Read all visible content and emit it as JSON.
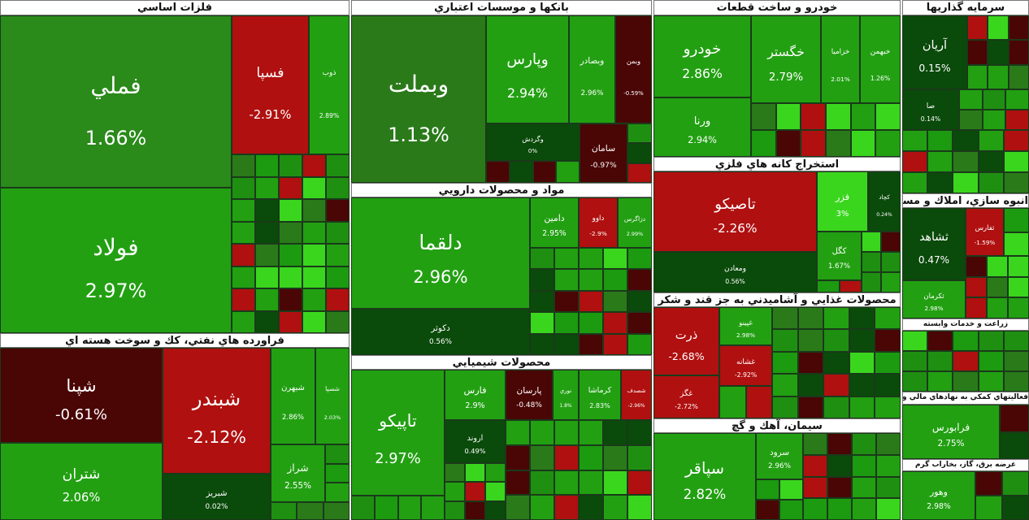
{
  "sectors": [
    {
      "title": "فلزات اساسي",
      "tiles": [
        {
          "name": "فملي",
          "change": "1.66%",
          "color": "#2a8a1a"
        },
        {
          "name": "فولاد",
          "change": "2.97%",
          "color": "#22a012"
        },
        {
          "name": "فسپا",
          "change": "-2.91%",
          "color": "#b01010"
        },
        {
          "name": "ذوب",
          "change": "2.89%",
          "color": "#22a012"
        }
      ]
    },
    {
      "title": "فراورده هاي نفتي، كك و سوخت هسته اي",
      "tiles": [
        {
          "name": "شپنا",
          "change": "-0.61%",
          "color": "#4a0505"
        },
        {
          "name": "شبندر",
          "change": "-2.12%",
          "color": "#b01010"
        },
        {
          "name": "شتران",
          "change": "2.06%",
          "color": "#22a012"
        },
        {
          "name": "شبريز",
          "change": "0.02%",
          "color": "#0a4a0a"
        },
        {
          "name": "شبهرن",
          "change": "2.86%",
          "color": "#22a012"
        },
        {
          "name": "شسپا",
          "change": "2.03%",
          "color": "#22a012"
        },
        {
          "name": "شراز",
          "change": "2.55%",
          "color": "#22a012"
        }
      ]
    },
    {
      "title": "بانكها و موسسات اعتباري",
      "tiles": [
        {
          "name": "وبملت",
          "change": "1.13%",
          "color": "#2a7a1a"
        },
        {
          "name": "وپارس",
          "change": "2.94%",
          "color": "#22a012"
        },
        {
          "name": "وبصادر",
          "change": "2.96%",
          "color": "#22a012"
        },
        {
          "name": "وبمن",
          "change": "-0.59%",
          "color": "#4a0505"
        },
        {
          "name": "وگردش",
          "change": "0%",
          "color": "#0a4a0a"
        },
        {
          "name": "سامان",
          "change": "-0.97%",
          "color": "#4a0505"
        }
      ]
    },
    {
      "title": "مواد و محصولات دارويي",
      "tiles": [
        {
          "name": "دلقما",
          "change": "2.96%",
          "color": "#22a012"
        },
        {
          "name": "دكوثر",
          "change": "0.56%",
          "color": "#0a4a0a"
        },
        {
          "name": "دامين",
          "change": "2.95%",
          "color": "#22a012"
        },
        {
          "name": "داوو",
          "change": "-2.9%",
          "color": "#b01010"
        },
        {
          "name": "دزاگرس",
          "change": "2.99%",
          "color": "#22a012"
        }
      ]
    },
    {
      "title": "محصولات شيميايي",
      "tiles": [
        {
          "name": "تاپيكو",
          "change": "2.97%",
          "color": "#22a012"
        },
        {
          "name": "فارس",
          "change": "2.9%",
          "color": "#22a012"
        },
        {
          "name": "پارسان",
          "change": "-0.48%",
          "color": "#4a0505"
        },
        {
          "name": "نوري",
          "change": "1.8%",
          "color": "#22a012"
        },
        {
          "name": "كرماشا",
          "change": "2.83%",
          "color": "#22a012"
        },
        {
          "name": "شصدف",
          "change": "-2.96%",
          "color": "#b01010"
        },
        {
          "name": "اروند",
          "change": "0.49%",
          "color": "#0a4a0a"
        }
      ]
    },
    {
      "title": "خودرو و ساخت قطعات",
      "tiles": [
        {
          "name": "خودرو",
          "change": "2.86%",
          "color": "#22a012"
        },
        {
          "name": "ورنا",
          "change": "2.94%",
          "color": "#22a012"
        },
        {
          "name": "خگستر",
          "change": "2.79%",
          "color": "#22a012"
        },
        {
          "name": "خزاميا",
          "change": "2.01%",
          "color": "#22a012"
        },
        {
          "name": "خبهمن",
          "change": "1.26%",
          "color": "#22a012"
        }
      ]
    },
    {
      "title": "استخراج كانه هاي فلزي",
      "tiles": [
        {
          "name": "تاصيكو",
          "change": "-2.26%",
          "color": "#b01010"
        },
        {
          "name": "ومعادن",
          "change": "0.56%",
          "color": "#0a4a0a"
        },
        {
          "name": "فزر",
          "change": "3%",
          "color": "#3ad61e"
        },
        {
          "name": "كچاد",
          "change": "0.24%",
          "color": "#0a4a0a"
        },
        {
          "name": "كگل",
          "change": "1.67%",
          "color": "#22a012"
        }
      ]
    },
    {
      "title": "محصولات غذايي و آشاميدني به جز قند و شكر",
      "tiles": [
        {
          "name": "ذرت",
          "change": "-2.68%",
          "color": "#b01010"
        },
        {
          "name": "غگز",
          "change": "-2.72%",
          "color": "#b01010"
        },
        {
          "name": "غپينو",
          "change": "2.98%",
          "color": "#22a012"
        },
        {
          "name": "غشانه",
          "change": "-2.92%",
          "color": "#b01010"
        }
      ]
    },
    {
      "title": "سيمان، آهك و گچ",
      "tiles": [
        {
          "name": "سپاقر",
          "change": "2.82%",
          "color": "#22a012"
        },
        {
          "name": "سرود",
          "change": "2.96%",
          "color": "#22a012"
        }
      ]
    },
    {
      "title": "سرمايه گذاريها",
      "tiles": [
        {
          "name": "آريان",
          "change": "0.15%",
          "color": "#0a4a0a"
        },
        {
          "name": "صا",
          "change": "0.14%",
          "color": "#0a4a0a"
        }
      ]
    },
    {
      "title": "انبوه سازي، املاك و مستغلات",
      "tiles": [
        {
          "name": "ثشاهد",
          "change": "0.47%",
          "color": "#0a4a0a"
        },
        {
          "name": "ثفارس",
          "change": "-1.59%",
          "color": "#b01010"
        },
        {
          "name": "ثكرمان",
          "change": "2.98%",
          "color": "#22a012"
        }
      ]
    },
    {
      "title": "زراعت و خدمات وابسته",
      "tiles": []
    },
    {
      "title": "فعاليتهاي كمكي به نهادهاي مالي واسط",
      "tiles": [
        {
          "name": "فرابورس",
          "change": "2.75%",
          "color": "#22a012"
        }
      ]
    },
    {
      "title": "عرضه برق، گاز، بخاراب گرم",
      "tiles": [
        {
          "name": "وهور",
          "change": "2.98%",
          "color": "#22a012"
        }
      ]
    }
  ]
}
